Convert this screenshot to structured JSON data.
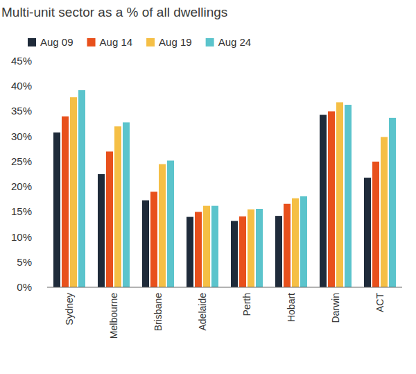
{
  "chart_data": {
    "type": "bar",
    "title": "Multi-unit sector as a % of all dwellings",
    "categories": [
      "Sydney",
      "Melbourne",
      "Brisbane",
      "Adelaide",
      "Perth",
      "Hobart",
      "Darwin",
      "ACT"
    ],
    "series": [
      {
        "name": "Aug 09",
        "color": "#1f2b3a",
        "values": [
          30.8,
          22.5,
          17.3,
          14.0,
          13.2,
          14.2,
          34.3,
          21.8
        ]
      },
      {
        "name": "Aug 14",
        "color": "#e8501c",
        "values": [
          34.0,
          27.0,
          19.0,
          15.0,
          14.1,
          16.6,
          35.0,
          25.0
        ]
      },
      {
        "name": "Aug 19",
        "color": "#f5bf45",
        "values": [
          37.8,
          32.0,
          24.5,
          16.2,
          15.5,
          17.7,
          36.8,
          29.9
        ]
      },
      {
        "name": "Aug 24",
        "color": "#5bc4cc",
        "values": [
          39.2,
          32.8,
          25.2,
          16.2,
          15.6,
          18.1,
          36.3,
          33.7
        ]
      }
    ],
    "ylim": [
      0,
      45
    ],
    "yticks": [
      {
        "value": 0,
        "label": "0%"
      },
      {
        "value": 5,
        "label": "5%"
      },
      {
        "value": 10,
        "label": "10%"
      },
      {
        "value": 15,
        "label": "15%"
      },
      {
        "value": 20,
        "label": "20%"
      },
      {
        "value": 25,
        "label": "25%"
      },
      {
        "value": 30,
        "label": "30%"
      },
      {
        "value": 35,
        "label": "35%"
      },
      {
        "value": 40,
        "label": "40%"
      },
      {
        "value": 45,
        "label": "45%"
      }
    ],
    "grid": false,
    "legend": "top"
  }
}
